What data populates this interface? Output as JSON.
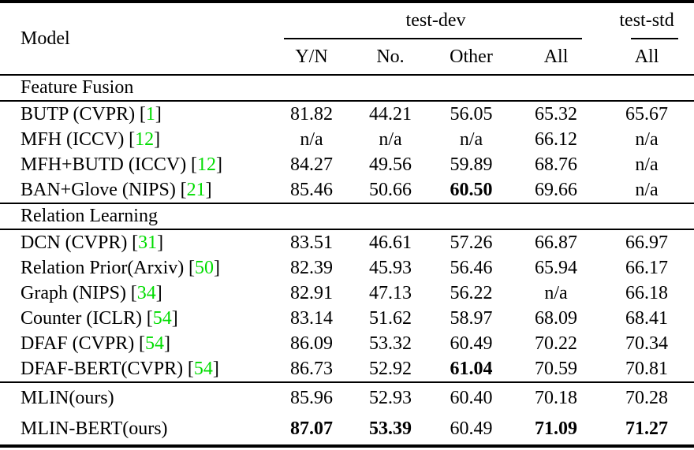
{
  "colors": {
    "citation_green": "#00dd00",
    "rule_black": "#000000",
    "background": "#ffffff"
  },
  "table": {
    "cite_open": "[",
    "cite_close": "]",
    "header": {
      "model": "Model",
      "group_dev": "test-dev",
      "group_std": "test-std",
      "sub_yn": "Y/N",
      "sub_no": "No.",
      "sub_other": "Other",
      "sub_all": "All",
      "sub_std_all": "All"
    },
    "sections": [
      {
        "title": "Feature Fusion",
        "rows": [
          {
            "model": "BUTP (CVPR)",
            "cite": "1",
            "yn": "81.82",
            "no": "44.21",
            "other": "56.05",
            "all": "65.32",
            "std": "65.67"
          },
          {
            "model": "MFH (ICCV)",
            "cite": "12",
            "yn": "n/a",
            "no": "n/a",
            "other": "n/a",
            "all": "66.12",
            "std": "n/a"
          },
          {
            "model": "MFH+BUTD (ICCV)",
            "cite": "12",
            "yn": "84.27",
            "no": "49.56",
            "other": "59.89",
            "all": "68.76",
            "std": "n/a"
          },
          {
            "model": "BAN+Glove (NIPS)",
            "cite": "21",
            "yn": "85.46",
            "no": "50.66",
            "other": "60.50",
            "all": "69.66",
            "std": "n/a"
          }
        ]
      },
      {
        "title": "Relation Learning",
        "rows": [
          {
            "model": "DCN (CVPR)",
            "cite": "31",
            "yn": "83.51",
            "no": "46.61",
            "other": "57.26",
            "all": "66.87",
            "std": "66.97"
          },
          {
            "model": "Relation Prior(Arxiv)",
            "cite": "50",
            "yn": "82.39",
            "no": "45.93",
            "other": "56.46",
            "all": "65.94",
            "std": "66.17"
          },
          {
            "model": "Graph (NIPS)",
            "cite": "34",
            "yn": "82.91",
            "no": "47.13",
            "other": "56.22",
            "all": "n/a",
            "std": "66.18"
          },
          {
            "model": "Counter (ICLR)",
            "cite": "54",
            "yn": "83.14",
            "no": "51.62",
            "other": "58.97",
            "all": "68.09",
            "std": "68.41"
          },
          {
            "model": "DFAF (CVPR)",
            "cite": "54",
            "yn": "86.09",
            "no": "53.32",
            "other": "60.49",
            "all": "70.22",
            "std": "70.34"
          },
          {
            "model": "DFAF-BERT(CVPR)",
            "cite": "54",
            "yn": "86.73",
            "no": "52.92",
            "other": "61.04",
            "all": "70.59",
            "std": "70.81"
          }
        ]
      },
      {
        "title": null,
        "rows": [
          {
            "model": "MLIN(ours)",
            "cite": null,
            "yn": "85.96",
            "no": "52.93",
            "other": "60.40",
            "all": "70.18",
            "std": "70.28"
          },
          {
            "model": "MLIN-BERT(ours)",
            "cite": null,
            "yn": "87.07",
            "no": "53.39",
            "other": "60.49",
            "all": "71.09",
            "std": "71.27"
          }
        ]
      }
    ]
  }
}
